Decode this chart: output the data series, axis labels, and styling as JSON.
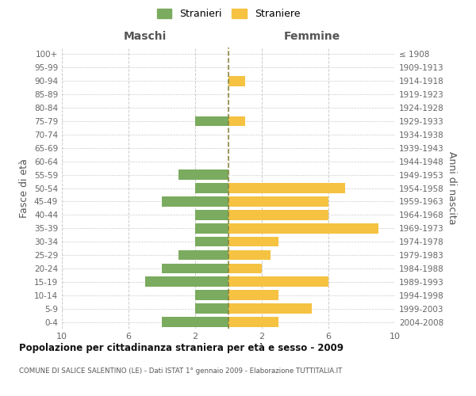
{
  "age_groups": [
    "100+",
    "95-99",
    "90-94",
    "85-89",
    "80-84",
    "75-79",
    "70-74",
    "65-69",
    "60-64",
    "55-59",
    "50-54",
    "45-49",
    "40-44",
    "35-39",
    "30-34",
    "25-29",
    "20-24",
    "15-19",
    "10-14",
    "5-9",
    "0-4"
  ],
  "birth_years": [
    "≤ 1908",
    "1909-1913",
    "1914-1918",
    "1919-1923",
    "1924-1928",
    "1929-1933",
    "1934-1938",
    "1939-1943",
    "1944-1948",
    "1949-1953",
    "1954-1958",
    "1959-1963",
    "1964-1968",
    "1969-1973",
    "1974-1978",
    "1979-1983",
    "1984-1988",
    "1989-1993",
    "1994-1998",
    "1999-2003",
    "2004-2008"
  ],
  "males": [
    0,
    0,
    0,
    0,
    0,
    2,
    0,
    0,
    0,
    3,
    2,
    4,
    2,
    2,
    2,
    3,
    4,
    5,
    2,
    2,
    4
  ],
  "females": [
    0,
    0,
    1,
    0,
    0,
    1,
    0,
    0,
    0,
    0,
    7,
    6,
    6,
    9,
    3,
    2.5,
    2,
    6,
    3,
    5,
    3
  ],
  "male_color": "#7aab5e",
  "female_color": "#f5c242",
  "background_color": "#ffffff",
  "grid_color": "#cccccc",
  "title": "Popolazione per cittadinanza straniera per età e sesso - 2009",
  "subtitle": "COMUNE DI SALICE SALENTINO (LE) - Dati ISTAT 1° gennaio 2009 - Elaborazione TUTTITALIA.IT",
  "ylabel_left": "Fasce di età",
  "ylabel_right": "Anni di nascita",
  "xlabel_left": "Maschi",
  "xlabel_right": "Femmine",
  "legend_male": "Stranieri",
  "legend_female": "Straniere",
  "xlim": 10,
  "figsize": [
    6.0,
    5.0
  ],
  "dpi": 100
}
